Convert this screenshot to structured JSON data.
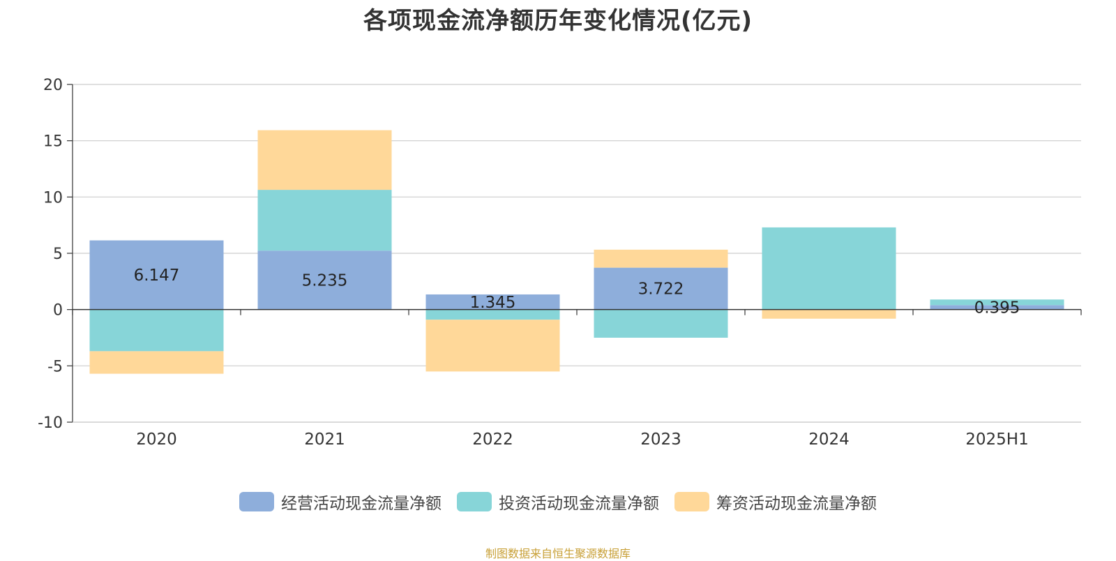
{
  "chart_data": {
    "type": "bar",
    "stacked": true,
    "title": "各项现金流净额历年变化情况(亿元)",
    "categories": [
      "2020",
      "2021",
      "2022",
      "2023",
      "2024",
      "2025H1"
    ],
    "series": [
      {
        "name": "经营活动现金流量净额",
        "color": "#8eaedb",
        "values": [
          6.147,
          5.235,
          1.345,
          3.722,
          -0.01,
          0.395
        ],
        "labels": [
          "6.147",
          "5.235",
          "1.345",
          "3.722",
          "",
          "0.395"
        ]
      },
      {
        "name": "投资活动现金流量净额",
        "color": "#87d5d8",
        "values": [
          -3.7,
          5.4,
          -0.9,
          -2.5,
          7.3,
          0.5
        ]
      },
      {
        "name": "筹资活动现金流量净额",
        "color": "#ffd899",
        "values": [
          -2.0,
          5.3,
          -4.6,
          1.6,
          -0.8,
          0.0
        ]
      }
    ],
    "yticks": [
      20,
      15,
      10,
      5,
      0,
      -5,
      -10
    ],
    "ylim": [
      -10,
      20
    ],
    "grid": true,
    "legend_position": "bottom-center"
  },
  "source_note": "制图数据来自恒生聚源数据库"
}
